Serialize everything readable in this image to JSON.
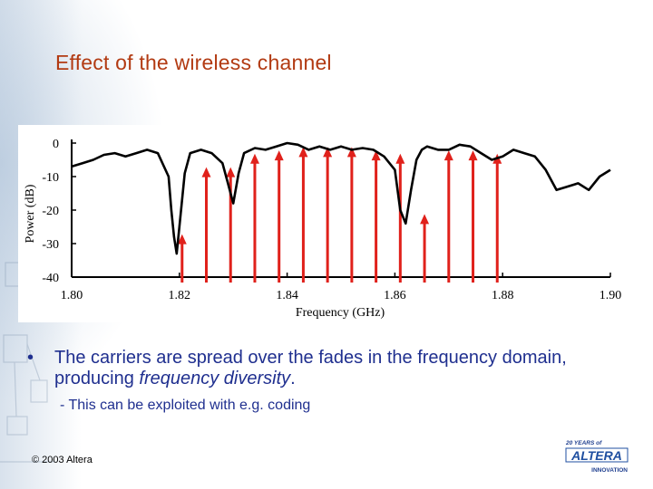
{
  "slide": {
    "title": "Effect of the wireless channel",
    "bullet_symbol": "•",
    "bullet_text_before": "The carriers are spread over the fades in the frequency domain, producing ",
    "bullet_text_italic": "frequency diversity",
    "bullet_text_after": ".",
    "sub_bullet": "- This can be exploited with e.g. coding",
    "copyright": "© 2003 Altera",
    "logo_top": "20 YEARS of",
    "logo_main": "ALTERA",
    "logo_bottom": "INNOVATION"
  },
  "chart_data": {
    "type": "line",
    "xlabel": "Frequency (GHz)",
    "ylabel": "Power (dB)",
    "xlim": [
      1.8,
      1.9
    ],
    "ylim": [
      -40,
      0
    ],
    "x_ticks": [
      "1.80",
      "1.82",
      "1.84",
      "1.86",
      "1.88",
      "1.90"
    ],
    "y_ticks": [
      "0",
      "-10",
      "-20",
      "-30",
      "-40"
    ],
    "series": [
      {
        "style": "channel-response",
        "color": "#000000",
        "x": [
          1.8,
          1.802,
          1.804,
          1.806,
          1.808,
          1.81,
          1.812,
          1.814,
          1.816,
          1.818,
          1.8185,
          1.819,
          1.8195,
          1.82,
          1.821,
          1.822,
          1.824,
          1.826,
          1.828,
          1.829,
          1.83,
          1.831,
          1.832,
          1.834,
          1.836,
          1.838,
          1.84,
          1.842,
          1.844,
          1.846,
          1.848,
          1.85,
          1.852,
          1.854,
          1.856,
          1.858,
          1.86,
          1.861,
          1.862,
          1.863,
          1.864,
          1.865,
          1.866,
          1.868,
          1.87,
          1.872,
          1.874,
          1.876,
          1.878,
          1.88,
          1.882,
          1.884,
          1.886,
          1.888,
          1.89,
          1.892,
          1.894,
          1.896,
          1.898,
          1.9
        ],
        "y": [
          -7,
          -6,
          -5,
          -3.5,
          -3,
          -4,
          -3,
          -2,
          -3,
          -10,
          -20,
          -28,
          -33,
          -25,
          -9,
          -3,
          -2,
          -3,
          -6,
          -12,
          -18,
          -9,
          -3,
          -1.5,
          -2,
          -1,
          0,
          -0.5,
          -2,
          -1,
          -2,
          -1,
          -2,
          -1.5,
          -2,
          -4,
          -8,
          -20,
          -24,
          -14,
          -5,
          -2,
          -1,
          -2,
          -2,
          -0.5,
          -1,
          -3,
          -5,
          -4,
          -2,
          -3,
          -4,
          -8,
          -14,
          -13,
          -12,
          -14,
          -10,
          -8
        ]
      }
    ],
    "carriers": {
      "color": "#e0211b",
      "x": [
        1.8205,
        1.825,
        1.8295,
        1.834,
        1.8385,
        1.843,
        1.8475,
        1.852,
        1.8565,
        1.861,
        1.8655,
        1.87,
        1.8745,
        1.879
      ],
      "top": [
        -28,
        -8,
        -8,
        -4,
        -3,
        -2,
        -2,
        -2,
        -3,
        -4,
        -22,
        -3,
        -3,
        -4
      ]
    }
  }
}
